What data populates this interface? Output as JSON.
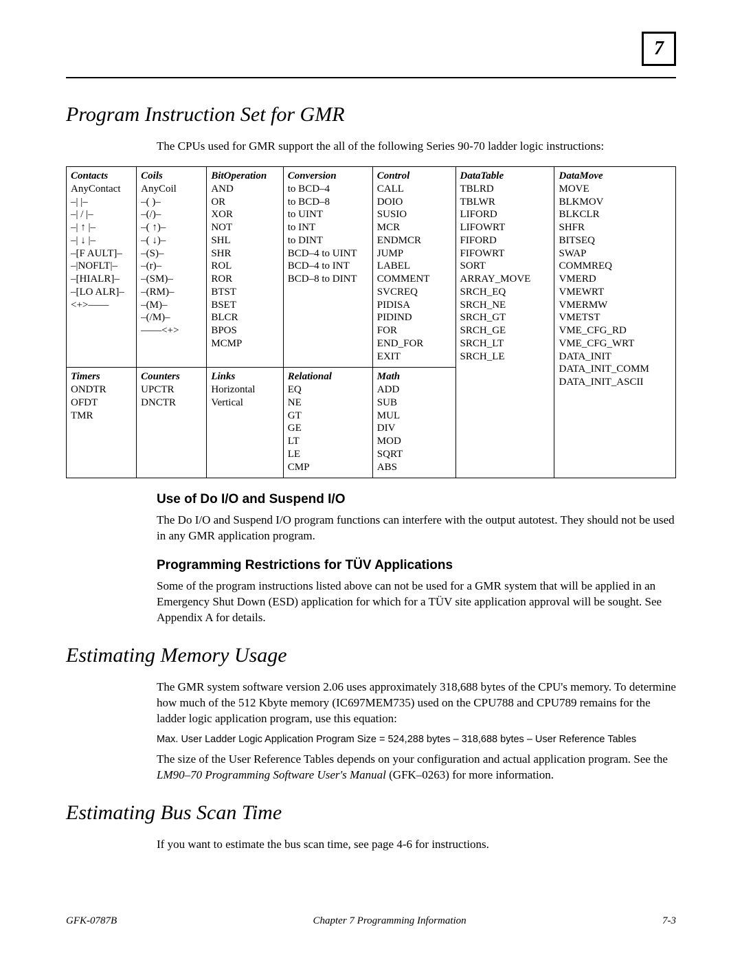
{
  "chapter_box": "7",
  "h1_a": "Program Instruction Set for GMR",
  "intro_a": "The CPUs used for GMR support the all of the following Series 90-70 ladder logic instructions:",
  "table": {
    "row1": {
      "contacts": {
        "hdr": "Contacts",
        "items": [
          "AnyContact",
          "–|    |–",
          "–| / |–",
          "–| ↑ |–",
          "–| ↓ |–",
          "–[F AULT]–",
          "–|NOFLT|–",
          "–[HIALR]–",
          "–[LO ALR]–",
          "<+>——"
        ]
      },
      "coils": {
        "hdr": "Coils",
        "items": [
          "AnyCoil",
          "–(    )–",
          "–(/)–",
          "–( ↑)–",
          "–( ↓)–",
          "–(S)–",
          "–(r)–",
          "–(SM)–",
          "–(RM)–",
          "–(M)–",
          "–(/M)–",
          "——<+>"
        ]
      },
      "bitop": {
        "hdr": "BitOperation",
        "items": [
          "AND",
          "OR",
          "XOR",
          "NOT",
          "SHL",
          "SHR",
          "ROL",
          "ROR",
          "BTST",
          "BSET",
          "BLCR",
          "BPOS",
          "MCMP"
        ]
      },
      "conv": {
        "hdr": "Conversion",
        "items": [
          "to BCD–4",
          "to BCD–8",
          "to UINT",
          "to INT",
          "to DINT",
          "BCD–4  to UINT",
          "BCD–4 to INT",
          "BCD–8  to DINT"
        ]
      },
      "control": {
        "hdr": "Control",
        "items": [
          "CALL",
          "DOIO",
          "SUSIO",
          "MCR",
          "ENDMCR",
          "JUMP",
          "LABEL",
          "COMMENT",
          "SVCREQ",
          "PIDISA",
          "PIDIND",
          "FOR",
          "END_FOR",
          "EXIT"
        ]
      },
      "datatbl": {
        "hdr": "DataTable",
        "items": [
          "TBLRD",
          "TBLWR",
          "LIFORD",
          "LIFOWRT",
          "FIFORD",
          "FIFOWRT",
          "SORT",
          "ARRAY_MOVE",
          "SRCH_EQ",
          "SRCH_NE",
          "SRCH_GT",
          "SRCH_GE",
          "SRCH_LT",
          "SRCH_LE"
        ]
      },
      "datamove": {
        "hdr": "DataMove",
        "items": [
          "MOVE",
          "BLKMOV",
          "BLKCLR",
          "SHFR",
          "BITSEQ",
          "SWAP",
          "COMMREQ",
          "VMERD",
          "VMEWRT",
          "VMERMW",
          "VMETST",
          "VME_CFG_RD",
          "VME_CFG_WRT",
          "DATA_INIT",
          "DATA_INIT_COMM",
          "DATA_INIT_ASCII"
        ]
      }
    },
    "row2": {
      "timers": {
        "hdr": "Timers",
        "items": [
          "ONDTR",
          "OFDT",
          "TMR"
        ]
      },
      "counters": {
        "hdr": "Counters",
        "items": [
          "UPCTR",
          "DNCTR"
        ]
      },
      "links": {
        "hdr": "Links",
        "items": [
          "Horizontal",
          "Vertical"
        ]
      },
      "rel": {
        "hdr": "Relational",
        "items": [
          "EQ",
          "NE",
          "GT",
          "GE",
          "LT",
          "LE",
          "CMP"
        ]
      },
      "math": {
        "hdr": "Math",
        "items": [
          "ADD",
          "SUB",
          "MUL",
          "DIV",
          "MOD",
          "SQRT",
          "ABS"
        ]
      }
    }
  },
  "sub_a": "Use of Do I/O and Suspend I/O",
  "p_a": "The Do I/O and Suspend I/O program functions can interfere with the output autotest. They should not be used in any GMR application program.",
  "sub_b": "Programming Restrictions for TÜV Applications",
  "p_b": "Some of the program instructions listed above can not be used for a GMR system that will be applied in an Emergency Shut Down (ESD) application for which for a TÜV site application approval will be sought. See Appendix A for details.",
  "h1_b": "Estimating Memory Usage",
  "p_c": "The GMR system software version 2.06 uses approximately 318,688 bytes of the CPU's memory.  To determine how much of the 512 Kbyte memory (IC697MEM735) used on the CPU788 and CPU789 remains for the ladder logic application program, use this equation:",
  "eq": "Max. User Ladder Logic Application Program Size = 524,288 bytes – 318,688 bytes – User Reference Tables",
  "p_d1": "The size of the User Reference Tables depends on your configuration and actual application program.  See the ",
  "p_d_em": "LM90–70 Programming Software User's Manual",
  "p_d2": " (GFK–0263) for more information.",
  "h1_c": "Estimating Bus Scan Time",
  "p_e": "If you want to estimate the bus scan time, see page 4-6 for instructions.",
  "footer": {
    "left": "GFK-0787B",
    "mid": "Chapter 7  Programming Information",
    "right": "7-3"
  }
}
